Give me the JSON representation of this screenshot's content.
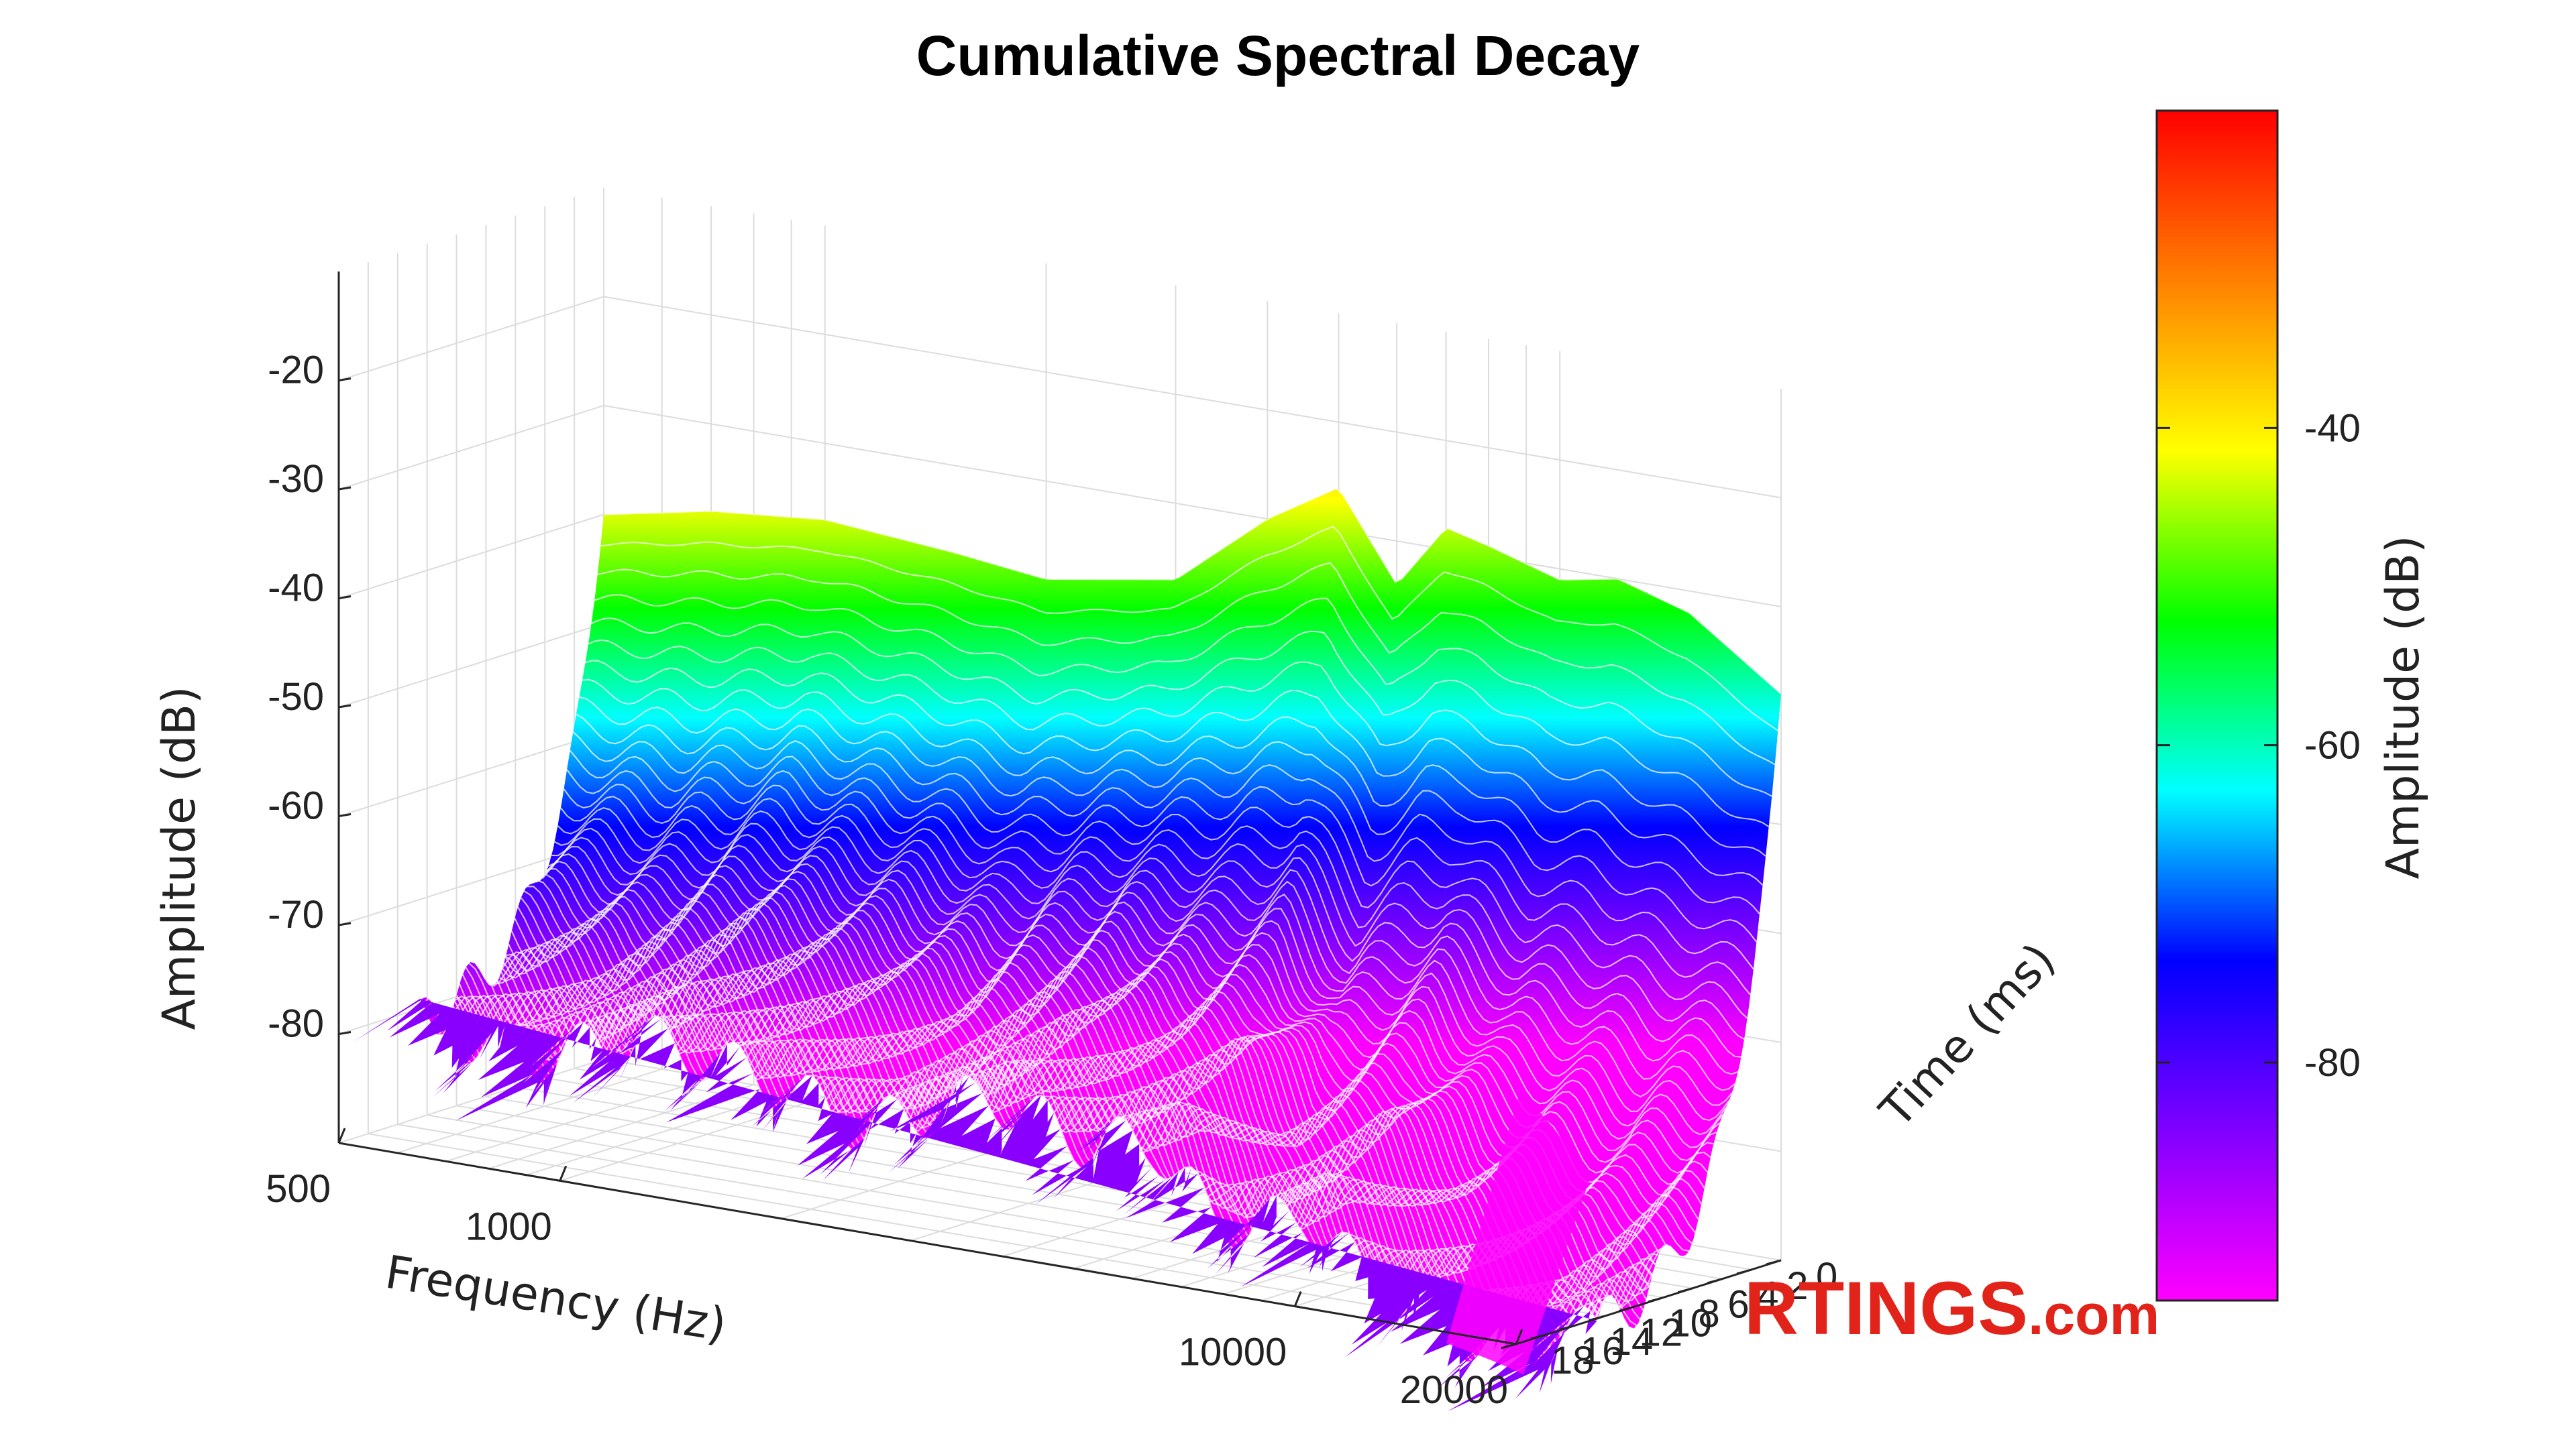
{
  "chart_data": {
    "type": "surface",
    "title": "Cumulative Spectral Decay",
    "x_axis": {
      "label": "Frequency (Hz)",
      "scale": "log",
      "range": [
        500,
        20000
      ],
      "ticks": [
        {
          "value": 500,
          "label": "500"
        },
        {
          "value": 1000,
          "label": "1000"
        },
        {
          "value": 10000,
          "label": "10000"
        },
        {
          "value": 20000,
          "label": "20000"
        }
      ]
    },
    "y_axis": {
      "label": "Time (ms)",
      "range": [
        0,
        18
      ],
      "ticks": [
        {
          "value": 0,
          "label": "0"
        },
        {
          "value": 2,
          "label": "2"
        },
        {
          "value": 4,
          "label": "4"
        },
        {
          "value": 6,
          "label": "6"
        },
        {
          "value": 8,
          "label": "8"
        },
        {
          "value": 10,
          "label": "10"
        },
        {
          "value": 12,
          "label": "12"
        },
        {
          "value": 14,
          "label": "14"
        },
        {
          "value": 16,
          "label": "16"
        },
        {
          "value": 18,
          "label": "18"
        }
      ]
    },
    "z_axis": {
      "label": "Amplitude (dB)",
      "range": [
        -90,
        -10
      ],
      "ticks": [
        {
          "value": -20,
          "label": "-20"
        },
        {
          "value": -30,
          "label": "-30"
        },
        {
          "value": -40,
          "label": "-40"
        },
        {
          "value": -50,
          "label": "-50"
        },
        {
          "value": -60,
          "label": "-60"
        },
        {
          "value": -70,
          "label": "-70"
        },
        {
          "value": -80,
          "label": "-80"
        }
      ]
    },
    "colorbar": {
      "label": "Amplitude (dB)",
      "range": [
        -95,
        -20
      ],
      "ticks": [
        {
          "value": -40,
          "label": "-40"
        },
        {
          "value": -60,
          "label": "-60"
        },
        {
          "value": -80,
          "label": "-80"
        }
      ],
      "colormap": [
        "#ff00ff",
        "#8000ff",
        "#0000ff",
        "#00ffff",
        "#00ff00",
        "#ffff00",
        "#ff8000",
        "#ff0000"
      ]
    },
    "grid": true,
    "decay_profile": {
      "frequency_hz": [
        500,
        700,
        1000,
        1500,
        2000,
        3000,
        4000,
        5000,
        6000,
        7000,
        8000,
        10000,
        12000,
        15000,
        20000
      ],
      "initial_amplitude_db": [
        -40,
        -38,
        -37,
        -38,
        -39,
        -37,
        -30,
        -26,
        -34,
        -28,
        -29,
        -31,
        -30,
        -32,
        -38
      ],
      "floor_amplitude_db": [
        -82,
        -84,
        -80,
        -82,
        -85,
        -80,
        -83,
        -82,
        -88,
        -88,
        -86,
        -92,
        -94,
        -96,
        -92
      ]
    }
  },
  "watermark": {
    "brand": "RTINGS",
    "suffix": ".com"
  }
}
